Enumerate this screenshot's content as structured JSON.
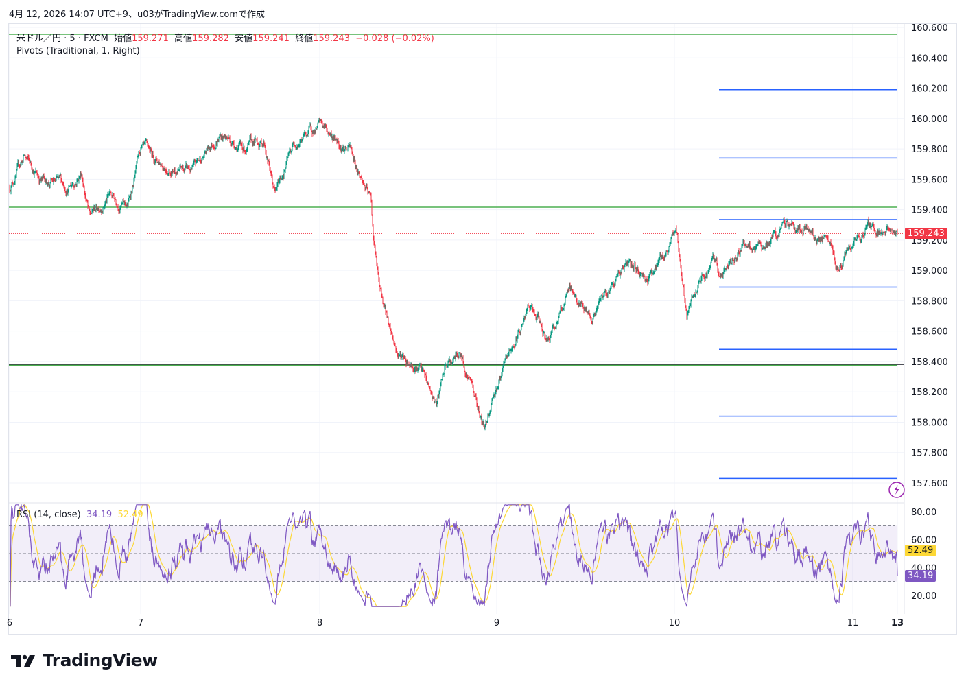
{
  "caption": "4月 12, 2026 14:07 UTC+9、u03がTradingView.comで作成",
  "legend": {
    "symbol": "米ドル／円 · 5 · FXCM",
    "open_label": "始値",
    "open": "159.271",
    "high_label": "高値",
    "high": "159.282",
    "low_label": "安値",
    "low": "159.241",
    "close_label": "終値",
    "close": "159.243",
    "change": "−0.028 (−0.02%)",
    "indicator": "Pivots (Traditional, 1, Right)"
  },
  "rsi_legend": {
    "name": "RSI (14, close)",
    "rsi": "34.19",
    "ma": "52.49"
  },
  "colors": {
    "up": "#089981",
    "down": "#f23645",
    "pivot_blue": "#2962ff",
    "pivot_green": "#4caf50",
    "rsi": "#7e57c2",
    "rsi_ma": "#fdd835"
  },
  "price_axis": [
    "160.600",
    "160.400",
    "160.200",
    "160.000",
    "159.800",
    "159.600",
    "159.400",
    "159.200",
    "159.000",
    "158.800",
    "158.600",
    "158.400",
    "158.200",
    "158.000",
    "157.800",
    "157.600"
  ],
  "last_price": "159.243",
  "rsi_axis": [
    "80.00",
    "60.00",
    "40.00",
    "20.00"
  ],
  "rsi_values": {
    "rsi": "34.19",
    "ma": "52.49"
  },
  "time_axis": [
    "6",
    "7",
    "8",
    "9",
    "10",
    "11",
    "13"
  ],
  "chart_data": {
    "type": "candlestick",
    "symbol": "USDJPY 5m",
    "ylim": [
      157.6,
      160.6
    ],
    "price_path_day_price": [
      [
        6.0,
        159.55
      ],
      [
        6.11,
        159.75
      ],
      [
        6.24,
        159.6
      ],
      [
        6.45,
        159.55
      ],
      [
        6.55,
        159.65
      ],
      [
        6.61,
        159.35
      ],
      [
        6.76,
        159.5
      ],
      [
        6.9,
        159.42
      ],
      [
        7.0,
        159.78
      ],
      [
        7.13,
        159.7
      ],
      [
        7.29,
        159.65
      ],
      [
        7.44,
        159.9
      ],
      [
        7.59,
        159.8
      ],
      [
        7.69,
        159.85
      ],
      [
        7.75,
        159.5
      ],
      [
        7.86,
        159.85
      ],
      [
        8.0,
        159.95
      ],
      [
        8.17,
        159.8
      ],
      [
        8.29,
        159.45
      ],
      [
        8.3,
        159.25
      ],
      [
        8.34,
        158.85
      ],
      [
        8.44,
        158.45
      ],
      [
        8.56,
        158.38
      ],
      [
        8.66,
        158.1
      ],
      [
        8.71,
        158.35
      ],
      [
        8.79,
        158.45
      ],
      [
        8.86,
        158.25
      ],
      [
        8.93,
        157.95
      ],
      [
        8.98,
        158.2
      ],
      [
        9.06,
        158.4
      ],
      [
        9.18,
        158.75
      ],
      [
        9.29,
        158.55
      ],
      [
        9.41,
        158.85
      ],
      [
        9.54,
        158.7
      ],
      [
        9.72,
        159.05
      ],
      [
        9.85,
        158.95
      ],
      [
        9.97,
        159.15
      ],
      [
        10.01,
        159.28
      ],
      [
        10.07,
        158.7
      ],
      [
        10.14,
        158.9
      ],
      [
        10.22,
        159.05
      ],
      [
        10.26,
        158.95
      ],
      [
        10.39,
        159.2
      ],
      [
        10.45,
        159.1
      ],
      [
        10.64,
        159.3
      ],
      [
        10.76,
        159.25
      ],
      [
        10.87,
        159.15
      ],
      [
        10.91,
        159.0
      ],
      [
        11.06,
        159.15
      ],
      [
        11.68,
        159.3
      ],
      [
        13.0,
        159.243
      ]
    ],
    "pivots_full": [
      160.555,
      159.416,
      158.375
    ],
    "pivots_current": [
      160.19,
      159.74,
      159.335,
      158.89,
      158.48,
      158.04,
      157.63
    ],
    "rsi_ylim": [
      10,
      85
    ],
    "rsi_bands": [
      70,
      50,
      30
    ]
  }
}
